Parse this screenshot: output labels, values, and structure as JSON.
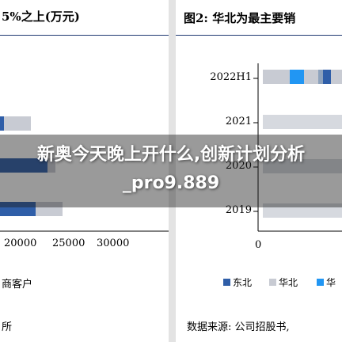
{
  "left_panel": {
    "title": "5%之上(万元)",
    "x_ticks": [
      "20000",
      "25000",
      "30000"
    ],
    "legend_fragment": "商客户",
    "source_fragment": "所"
  },
  "right_panel": {
    "title": "图2:  华北为最主要销",
    "y_labels": [
      "2022H1",
      "2021",
      "2020",
      "2019"
    ],
    "x_tick_zero": "0",
    "legend": [
      {
        "label": "东北",
        "color": "#2f5ea8"
      },
      {
        "label": "华北",
        "color": "#c8cbd3"
      },
      {
        "label": "华",
        "color": "#2196f3"
      }
    ],
    "source_fragment": "数据来源:  公司招股书,"
  },
  "overlay": {
    "text": "新奥今天晚上开什么,创新计划分析_pro9.889"
  },
  "colors": {
    "navy": "#1f3a72",
    "dark_blue": "#2f5ea8",
    "light_gray": "#c8cbd3",
    "light_blue": "#2196f3",
    "steel": "#8da2bd"
  }
}
